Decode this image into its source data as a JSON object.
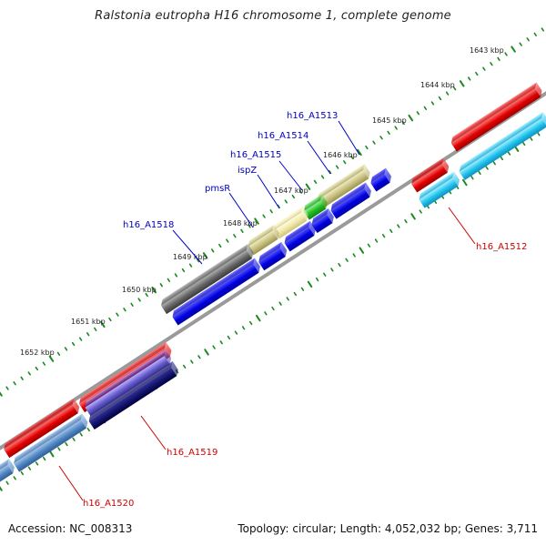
{
  "title": "Ralstonia eutropha H16 chromosome 1, complete genome",
  "footer": {
    "accession": "Accession: NC_008313",
    "stats": "Topology: circular; Length: 4,052,032 bp; Genes: 3,711"
  },
  "colors": {
    "backbone": "#8a8a8a",
    "ticks": "#1a8a1a",
    "forward_cds": "#ee0000",
    "reverse_cds": "#0000ee",
    "forward_rna": "#33ccee",
    "pseudogene": "#d4cf8a",
    "selected": "#4a4a90",
    "label_blue": "#0000bb",
    "label_red": "#cc0000"
  },
  "scale_labels": [
    "1643 kbp",
    "1644 kbp",
    "1645 kbp",
    "1646 kbp",
    "1647 kbp",
    "1648 kbp",
    "1649 kbp",
    "1650 kbp",
    "1651 kbp",
    "1652 kbp"
  ],
  "gene_labels": {
    "h16_A1513": "h16_A1513",
    "h16_A1514": "h16_A1514",
    "h16_A1515": "h16_A1515",
    "ispZ": "ispZ",
    "pmsR": "pmsR",
    "h16_A1518": "h16_A1518",
    "h16_A1512": "h16_A1512",
    "h16_A1519": "h16_A1519",
    "h16_A1520": "h16_A1520"
  }
}
